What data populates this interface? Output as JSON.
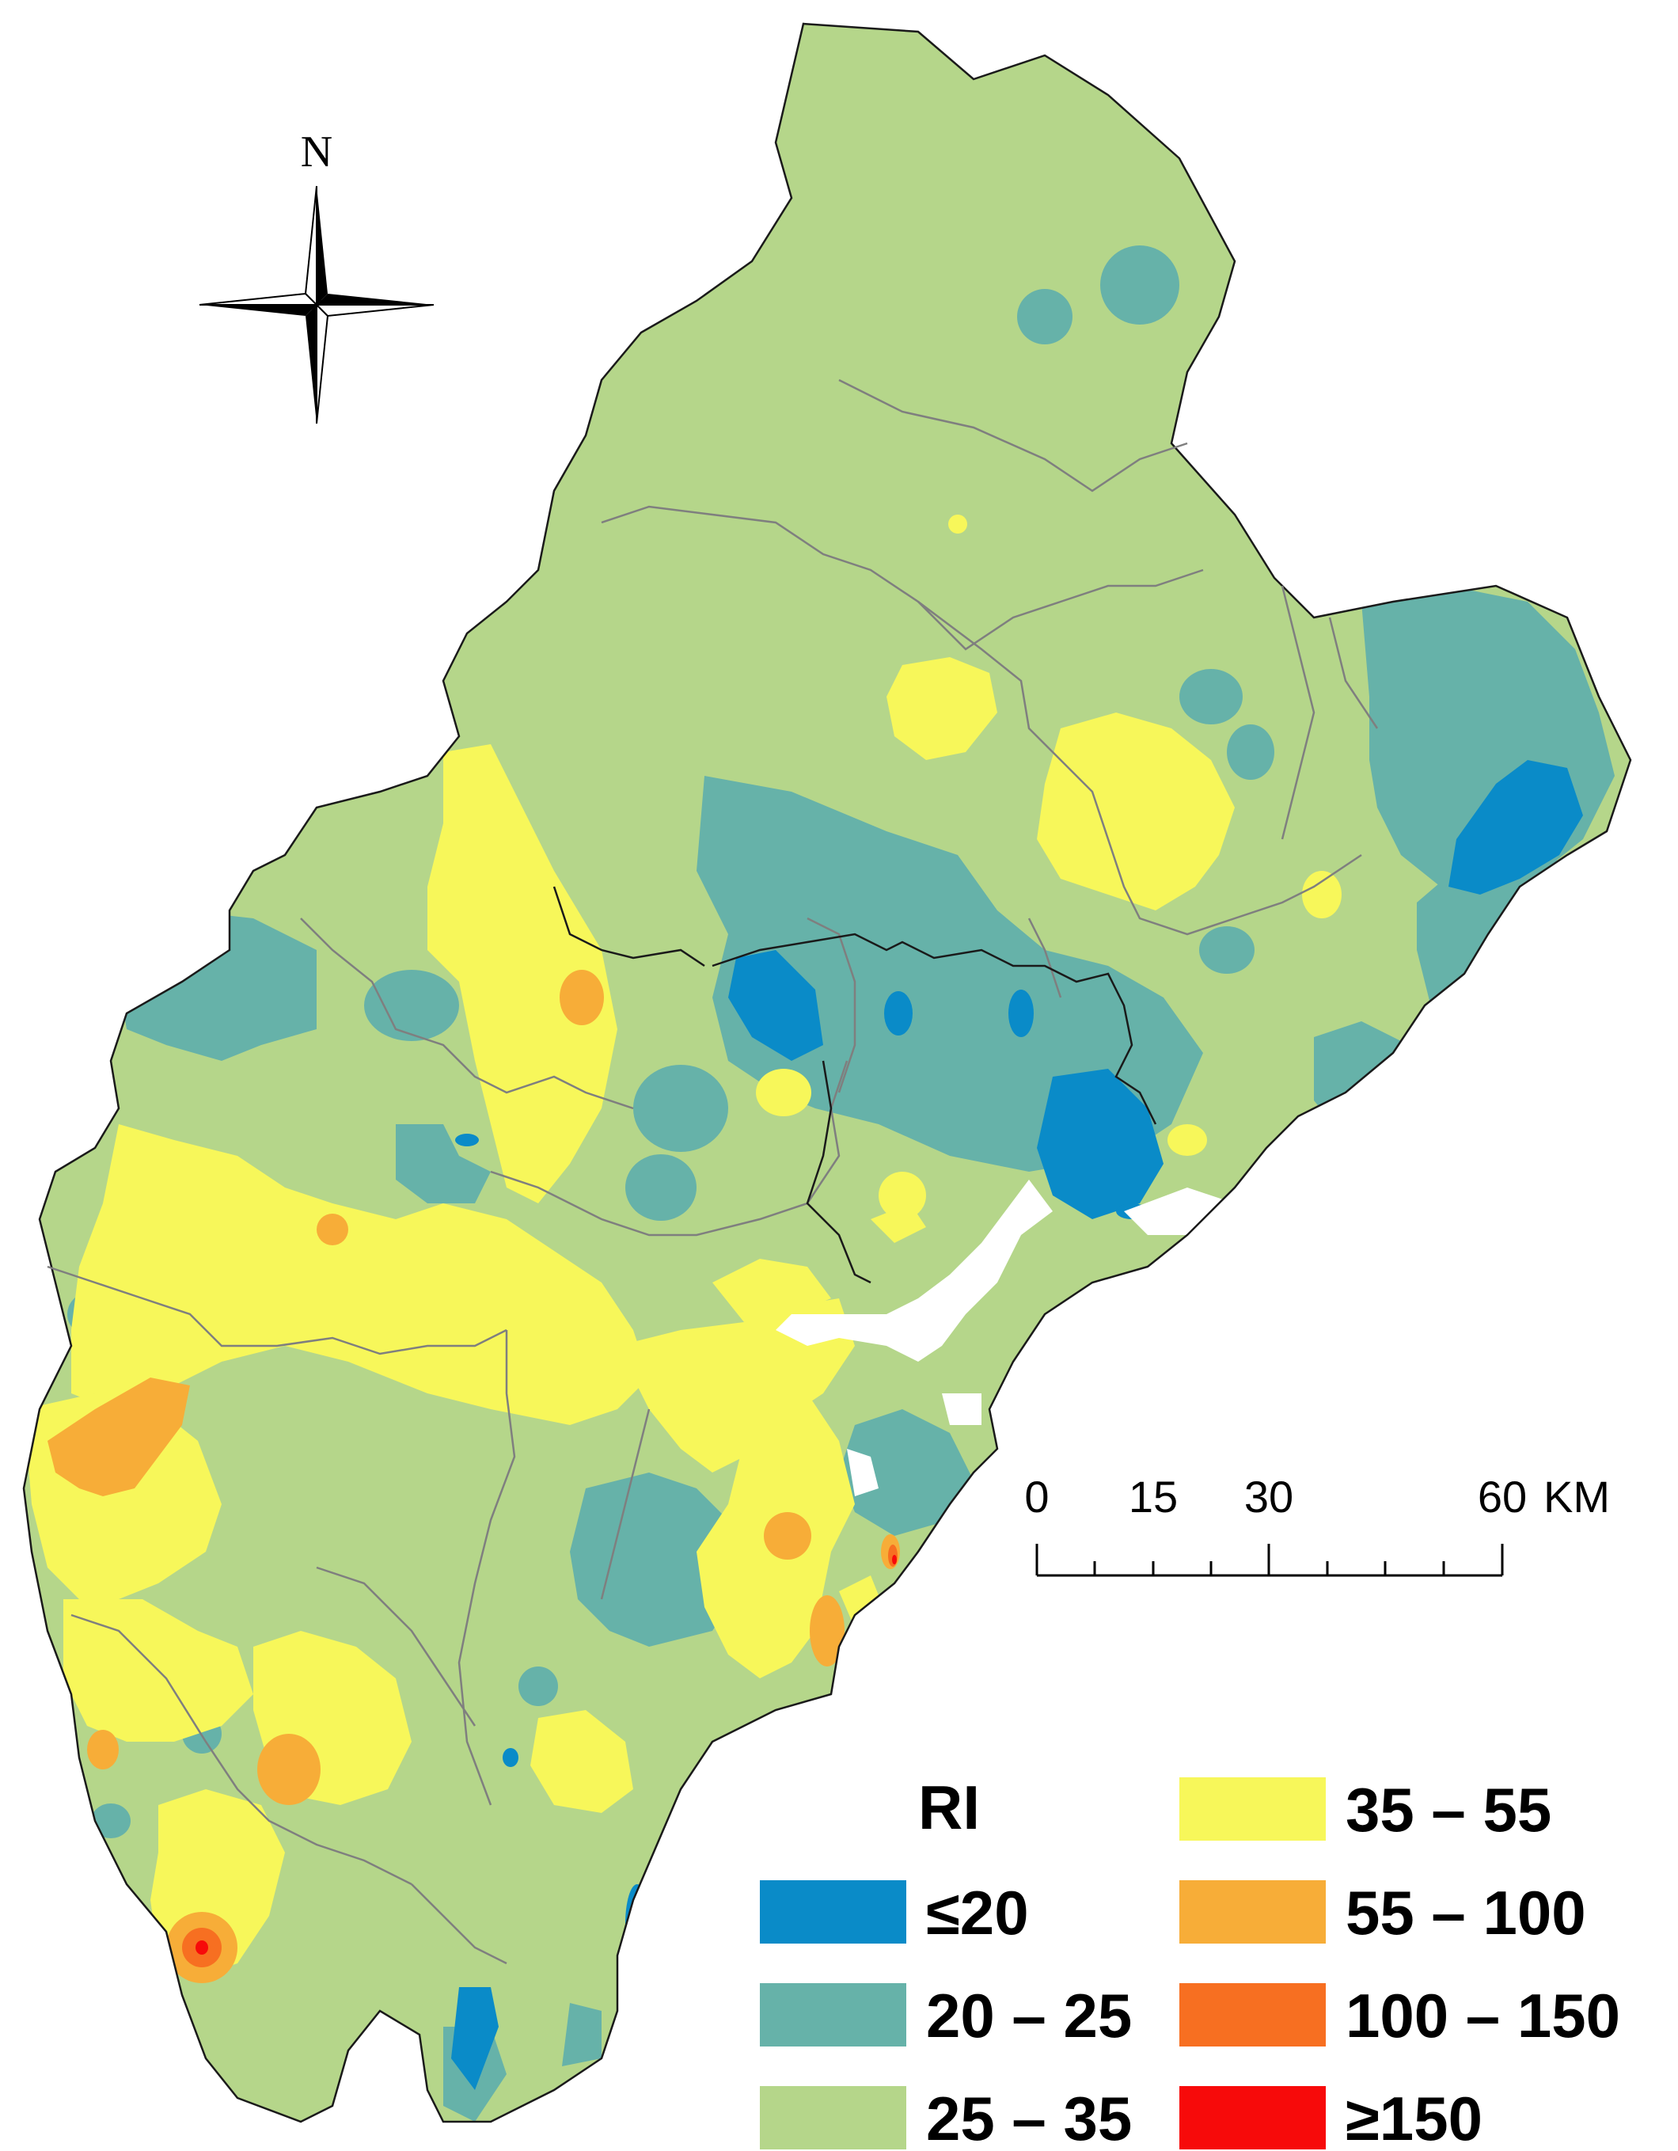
{
  "map": {
    "north_label": "N",
    "scale_bar": {
      "ticks": [
        "0",
        "15",
        "30",
        "60"
      ],
      "unit": "KM"
    },
    "legend": {
      "title": "RI",
      "classes": [
        {
          "label": "≤20",
          "color": "#0a8bc8"
        },
        {
          "label": "20 – 25",
          "color": "#66b2a9"
        },
        {
          "label": "25 – 35",
          "color": "#b5d68a"
        },
        {
          "label": "35 – 55",
          "color": "#f7f75a"
        },
        {
          "label": "55 – 100",
          "color": "#f7ad38"
        },
        {
          "label": "100 – 150",
          "color": "#f76f21"
        },
        {
          "label": "≥150",
          "color": "#f70a0a"
        }
      ]
    }
  }
}
